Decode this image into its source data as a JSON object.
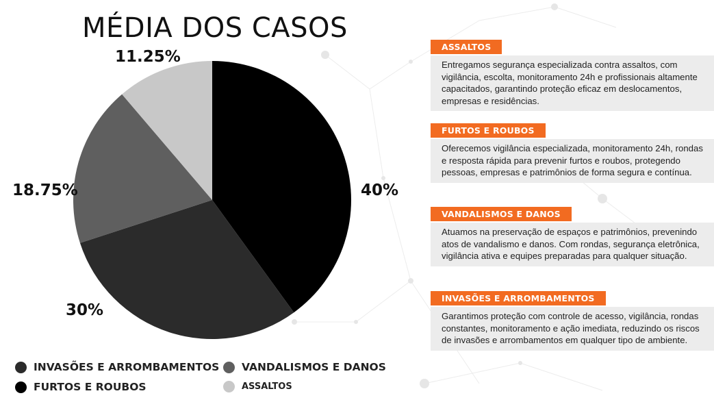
{
  "chart_data": {
    "type": "pie",
    "title": "MÉDIA DOS CASOS",
    "categories": [
      "FURTOS E ROUBOS",
      "INVASÕES E ARROMBAMENTOS",
      "VANDALISMOS E DANOS",
      "ASSALTOS"
    ],
    "values": [
      40,
      30,
      18.75,
      11.25
    ],
    "labels": [
      "40%",
      "30%",
      "18.75%",
      "11.25%"
    ],
    "colors": [
      "#000000",
      "#2b2b2b",
      "#5f5f5f",
      "#c8c8c8"
    ],
    "legend_position": "bottom"
  },
  "legend": [
    {
      "label": "INVASÕES E ARROMBAMENTOS",
      "color": "#2b2b2b"
    },
    {
      "label": "VANDALISMOS E DANOS",
      "color": "#5f5f5f"
    },
    {
      "label": "FURTOS E ROUBOS",
      "color": "#000000"
    },
    {
      "label": "ASSALTOS",
      "color": "#c8c8c8"
    }
  ],
  "cards": [
    {
      "title": "ASSALTOS",
      "text": "Entregamos segurança especializada contra assaltos, com vigilância, escolta, monitoramento 24h e profissionais altamente capacitados, garantindo proteção eficaz em deslocamentos, empresas e residências."
    },
    {
      "title": "FURTOS E ROUBOS",
      "text": "Oferecemos vigilância especializada, monitoramento 24h, rondas e resposta rápida para prevenir furtos e roubos, protegendo pessoas, empresas e patrimônios de forma segura e contínua."
    },
    {
      "title": "VANDALISMOS E DANOS",
      "text": "Atuamos na preservação de espaços e patrimônios, prevenindo atos de vandalismo e danos. Com rondas, segurança eletrônica, vigilância ativa e equipes preparadas para qualquer situação."
    },
    {
      "title": "INVASÕES E ARROMBAMENTOS",
      "text": "Garantimos proteção com controle de acesso, vigilância, rondas constantes, monitoramento e ação imediata, reduzindo os riscos de invasões e arrombamentos em qualquer tipo de ambiente."
    }
  ],
  "accent_color": "#f26b21"
}
